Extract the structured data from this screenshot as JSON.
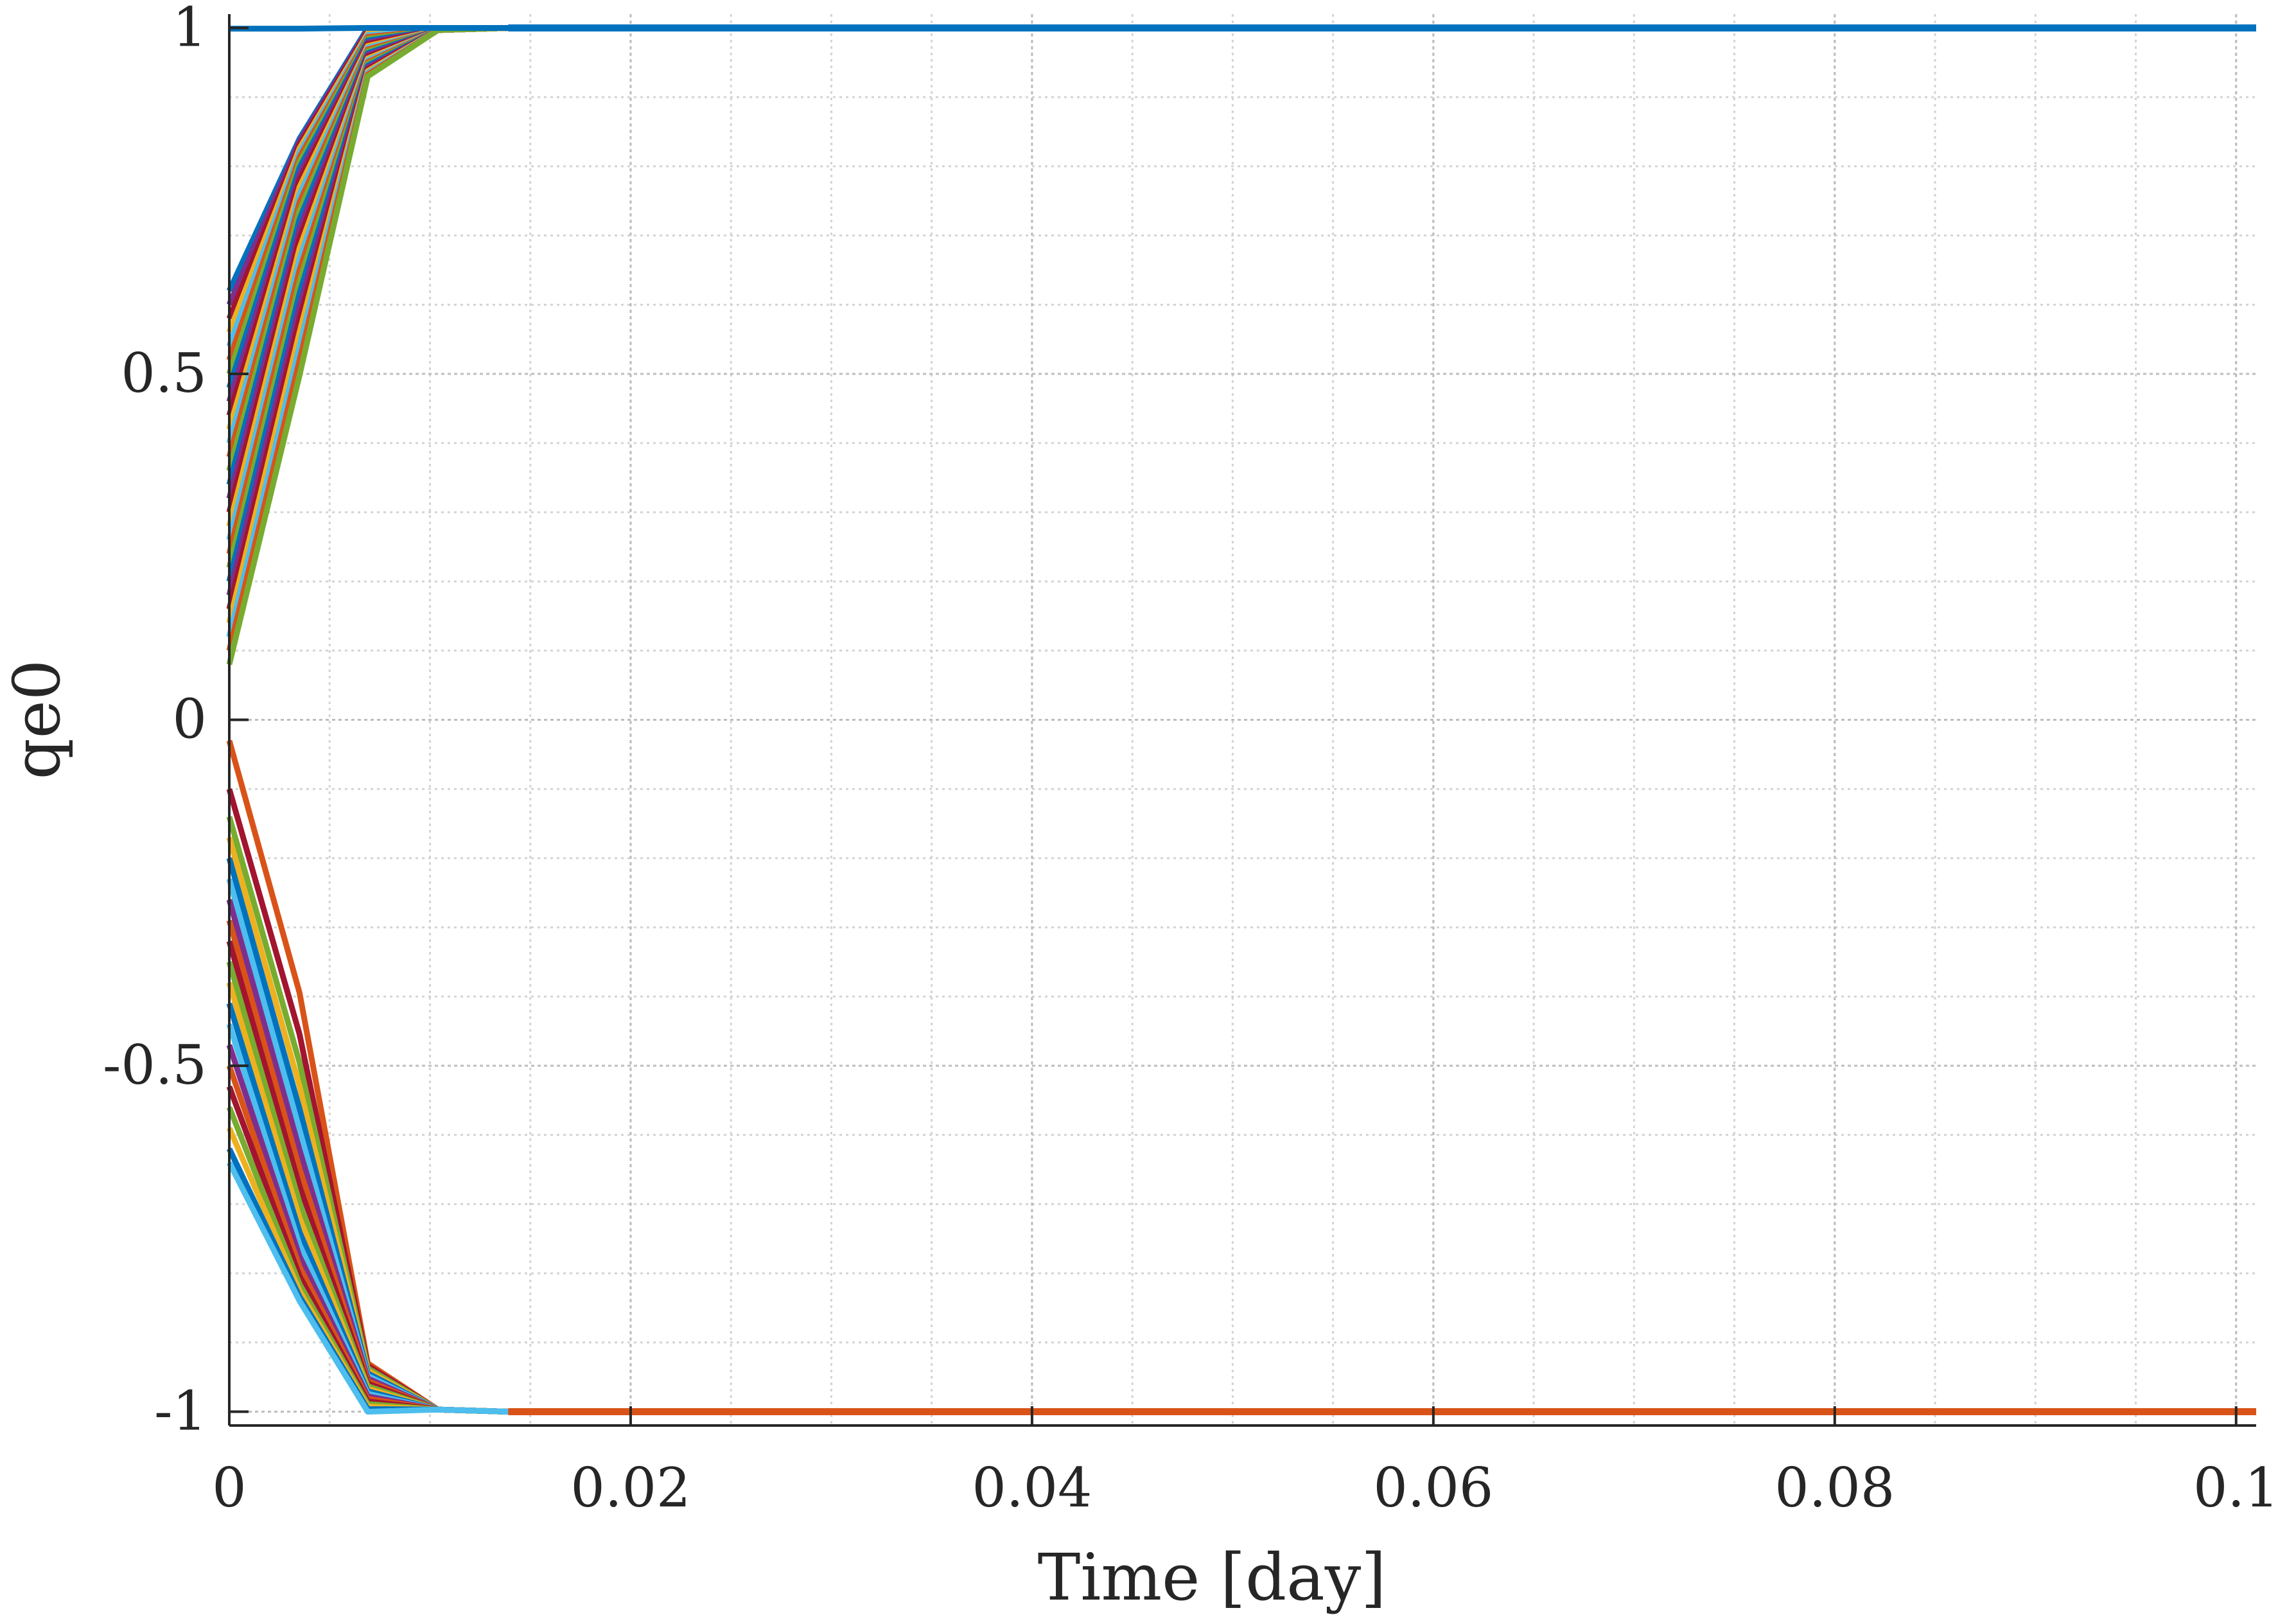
{
  "chart_data": {
    "type": "line",
    "title": "",
    "xlabel": "Time [day]",
    "ylabel": "qe0",
    "xlim": [
      0,
      0.101
    ],
    "ylim": [
      -1.02,
      1.02
    ],
    "x_ticks": [
      0,
      0.02,
      0.04,
      0.06,
      0.08,
      0.1
    ],
    "x_tick_labels": [
      "0",
      "0.02",
      "0.04",
      "0.06",
      "0.08",
      "0.1"
    ],
    "y_ticks": [
      -1,
      -0.5,
      0,
      0.5,
      1
    ],
    "y_tick_labels": [
      "-1",
      "-0.5",
      "0",
      "0.5",
      "1"
    ],
    "grid": true,
    "minor_grid": true,
    "legend": "none",
    "x": [
      0,
      0.0035,
      0.0069,
      0.0104,
      0.0139,
      0.101
    ],
    "color_cycle": [
      "#0072BD",
      "#D95319",
      "#EDB120",
      "#7E2F8E",
      "#77AC30",
      "#4DBEEE",
      "#A2142F"
    ],
    "upper_series_start_values": [
      0.62,
      0.6,
      0.58,
      0.56,
      0.54,
      0.52,
      0.5,
      0.48,
      0.46,
      0.44,
      0.42,
      0.4,
      0.38,
      0.36,
      0.34,
      0.32,
      0.3,
      0.28,
      0.26,
      0.24,
      0.22,
      0.2,
      0.18,
      0.16,
      0.14,
      0.12,
      0.1,
      0.08
    ],
    "lower_series_start_values": [
      -0.03,
      -0.1,
      -0.14,
      -0.17,
      -0.2,
      -0.23,
      -0.26,
      -0.29,
      -0.32,
      -0.35,
      -0.38,
      -0.41,
      -0.44,
      -0.47,
      -0.5,
      -0.53,
      -0.56,
      -0.59,
      -0.62,
      -0.64
    ]
  }
}
